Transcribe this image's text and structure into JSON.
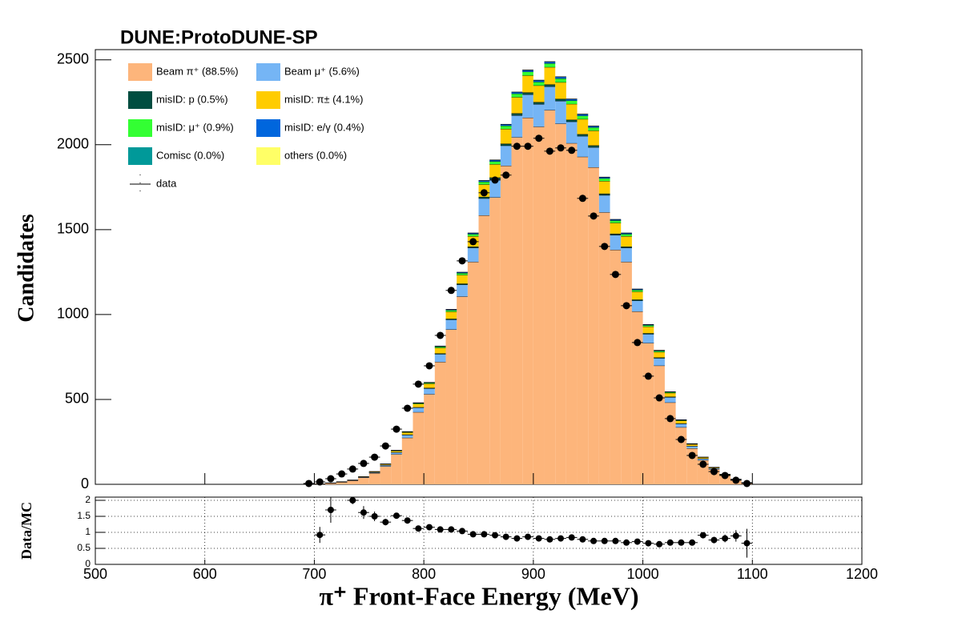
{
  "chart_data": [
    {
      "type": "histogram",
      "title": "DUNE:ProtoDUNE-SP",
      "ylabel": "Candidates",
      "stacked": true,
      "bins": [
        690,
        700,
        710,
        720,
        730,
        740,
        750,
        760,
        770,
        780,
        790,
        800,
        810,
        820,
        830,
        840,
        850,
        860,
        870,
        880,
        890,
        900,
        910,
        920,
        930,
        940,
        950,
        960,
        970,
        980,
        990,
        1000,
        1010,
        1020,
        1030,
        1040,
        1050,
        1060,
        1070,
        1080,
        1090,
        1100
      ],
      "series": [
        {
          "name": "Beam π⁺ (88.5%)",
          "color": "#fdb57b",
          "values": [
            1,
            3,
            7,
            13,
            22,
            40,
            66,
            106,
            177,
            274,
            425,
            531,
            721,
            912,
            1106,
            1310,
            1584,
            1690,
            1876,
            2044,
            2159,
            2106,
            2204,
            2124,
            2009,
            1929,
            1867,
            1602,
            1381,
            1310,
            1018,
            832,
            699,
            482,
            336,
            212,
            142,
            89,
            53,
            27,
            9
          ]
        },
        {
          "name": "Beam μ⁺ (5.6%)",
          "color": "#75b5f5",
          "values": [
            0,
            0,
            1,
            1,
            2,
            3,
            4,
            7,
            11,
            17,
            27,
            34,
            46,
            58,
            70,
            83,
            100,
            107,
            119,
            129,
            137,
            133,
            139,
            134,
            127,
            122,
            118,
            101,
            87,
            83,
            64,
            53,
            44,
            31,
            21,
            13,
            9,
            6,
            3,
            2,
            1
          ]
        },
        {
          "name": "misID: p (0.5%)",
          "color": "#004d40",
          "values": [
            0,
            0,
            0,
            0,
            0,
            0,
            1,
            1,
            1,
            2,
            2,
            3,
            4,
            5,
            6,
            7,
            9,
            10,
            11,
            12,
            12,
            12,
            12,
            12,
            11,
            11,
            11,
            9,
            8,
            7,
            6,
            5,
            4,
            3,
            2,
            1,
            1,
            0,
            0,
            0,
            0
          ]
        },
        {
          "name": "misID: π± (4.1%)",
          "color": "#ffcc00",
          "values": [
            0,
            0,
            0,
            1,
            1,
            2,
            3,
            5,
            8,
            13,
            20,
            25,
            33,
            42,
            51,
            61,
            73,
            78,
            87,
            95,
            100,
            98,
            102,
            98,
            93,
            89,
            87,
            74,
            64,
            61,
            47,
            39,
            32,
            22,
            16,
            10,
            7,
            4,
            2,
            1,
            0
          ]
        },
        {
          "name": "misID: μ⁺ (0.9%)",
          "color": "#33ff33",
          "values": [
            0,
            0,
            0,
            0,
            0,
            0,
            1,
            1,
            2,
            3,
            4,
            5,
            7,
            9,
            11,
            13,
            16,
            17,
            19,
            21,
            22,
            21,
            22,
            22,
            20,
            20,
            19,
            16,
            14,
            13,
            10,
            8,
            7,
            5,
            3,
            2,
            1,
            1,
            1,
            0,
            0
          ]
        },
        {
          "name": "misID: e/γ (0.4%)",
          "color": "#0066dd",
          "values": [
            0,
            0,
            0,
            0,
            0,
            0,
            0,
            0,
            1,
            1,
            2,
            2,
            3,
            4,
            5,
            6,
            7,
            8,
            8,
            9,
            10,
            10,
            10,
            10,
            9,
            9,
            8,
            7,
            6,
            6,
            5,
            4,
            3,
            2,
            2,
            1,
            0,
            0,
            0,
            0,
            0
          ]
        },
        {
          "name": "Comisc (0.0%)",
          "color": "#009999",
          "values": [
            0,
            0,
            0,
            0,
            0,
            0,
            0,
            0,
            0,
            0,
            0,
            0,
            0,
            0,
            0,
            0,
            0,
            0,
            0,
            0,
            0,
            0,
            0,
            0,
            0,
            0,
            0,
            0,
            0,
            0,
            0,
            0,
            0,
            0,
            0,
            0,
            0,
            0,
            0,
            0,
            0
          ]
        },
        {
          "name": "others (0.0%)",
          "color": "#ffff66",
          "values": [
            0,
            0,
            0,
            0,
            0,
            0,
            0,
            0,
            0,
            0,
            0,
            0,
            0,
            0,
            0,
            0,
            0,
            0,
            0,
            0,
            0,
            0,
            0,
            0,
            0,
            0,
            0,
            0,
            0,
            0,
            0,
            0,
            0,
            0,
            0,
            0,
            0,
            0,
            0,
            0,
            0
          ]
        }
      ],
      "data": {
        "name": "data",
        "color": "#000000",
        "values": [
          5,
          14,
          33,
          61,
          90,
          123,
          160,
          226,
          325,
          448,
          590,
          698,
          877,
          1142,
          1316,
          1429,
          1717,
          1792,
          1821,
          1991,
          1991,
          2038,
          1962,
          1981,
          1967,
          1684,
          1580,
          1401,
          1236,
          1052,
          835,
          637,
          509,
          387,
          264,
          170,
          118,
          75,
          52,
          24,
          5
        ]
      },
      "xlim": [
        500,
        1200
      ],
      "ylim": [
        0,
        2560
      ],
      "yticks": [
        0,
        500,
        1000,
        1500,
        2000,
        2500
      ],
      "legend": "upper left"
    },
    {
      "type": "errorbar",
      "ylabel": "Data/MC",
      "xlabel": "π⁺ Front-Face Energy (MeV)",
      "x": [
        695,
        705,
        715,
        725,
        735,
        745,
        755,
        765,
        775,
        785,
        795,
        805,
        815,
        825,
        835,
        845,
        855,
        865,
        875,
        885,
        895,
        905,
        915,
        925,
        935,
        945,
        955,
        965,
        975,
        985,
        995,
        1005,
        1015,
        1025,
        1035,
        1045,
        1055,
        1065,
        1075,
        1085,
        1095
      ],
      "values": [
        null,
        0.92,
        1.7,
        null,
        2.0,
        1.62,
        1.5,
        1.32,
        1.52,
        1.37,
        1.12,
        1.16,
        1.09,
        1.09,
        1.04,
        0.94,
        0.94,
        0.91,
        0.86,
        0.81,
        0.86,
        0.81,
        0.78,
        0.81,
        0.84,
        0.78,
        0.73,
        0.73,
        0.73,
        0.68,
        0.71,
        0.66,
        0.63,
        0.68,
        0.68,
        0.68,
        0.91,
        0.76,
        0.81,
        0.89,
        0.66
      ],
      "errors": [
        null,
        0.25,
        0.4,
        null,
        0.12,
        0.2,
        0.15,
        0.1,
        0.08,
        0.06,
        0.05,
        0.04,
        0.03,
        0.03,
        0.03,
        0.03,
        0.02,
        0.02,
        0.02,
        0.02,
        0.02,
        0.02,
        0.02,
        0.02,
        0.02,
        0.02,
        0.02,
        0.02,
        0.02,
        0.02,
        0.03,
        0.03,
        0.03,
        0.04,
        0.05,
        0.06,
        0.08,
        0.1,
        0.12,
        0.18,
        0.45
      ],
      "color": "#000000",
      "xlim": [
        500,
        1200
      ],
      "xticks": [
        500,
        600,
        700,
        800,
        900,
        1000,
        1100,
        1200
      ],
      "ylim": [
        0,
        2.1
      ],
      "yticks": [
        0,
        0.5,
        1,
        1.5,
        2
      ],
      "grid": true
    }
  ]
}
